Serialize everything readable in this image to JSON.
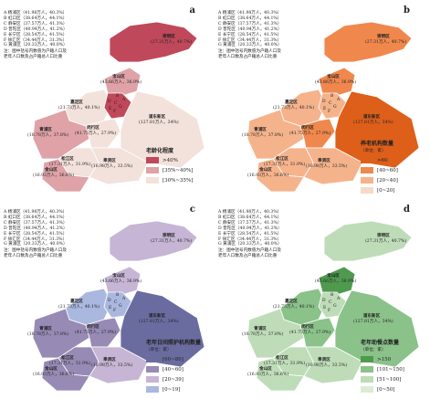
{
  "districts_list": [
    "A 杨浦区（41.98万人，40.3%）",
    "B 虹口区（38.64万人，44.1%）",
    "C 静安区（37.57万人，41.3%）",
    "D 普陀区（40.94万人，41.2%）",
    "E 长宁区（28.54万人，41.5%）",
    "F 徐汇区（34.44万人，31.3%）",
    "G 黄浦区（20.33万人，40.0%）"
  ],
  "note_lines": [
    "注：图中括号内数值为户籍人口及",
    "老年人口数及占户籍总人口比重"
  ],
  "map_labels": [
    {
      "name": "崇明区",
      "stats": "(27.31万人，40.7%)"
    },
    {
      "name": "嘉定区",
      "stats": "(21.73万人，40.1%)"
    },
    {
      "name": "宝山区",
      "stats": "(43.66万人，36.9%)"
    },
    {
      "name": "青浦区",
      "stats": "(18.78万人，37.8%)"
    },
    {
      "name": "闵行区",
      "stats": "(41.75万人，27.9%)"
    },
    {
      "name": "浦东新区",
      "stats": "(127.81万人，34%)"
    },
    {
      "name": "松江区",
      "stats": "(17.31万人，31.9%)"
    },
    {
      "name": "奉贤区",
      "stats": "(16.98万人，33.5%)"
    },
    {
      "name": "金山区",
      "stats": "(16.93万人，36.6%)"
    }
  ],
  "panels": [
    {
      "letter": "a",
      "legend_title": "老龄化程度",
      "legend_unit": "",
      "items": [
        ">40%",
        "[35%~40%]",
        "[30%~35%]"
      ],
      "colors": [
        "#c0485b",
        "#dea2a7",
        "#f3e1db"
      ]
    },
    {
      "letter": "b",
      "legend_title": "养老机构数量",
      "legend_unit": "（单位：家）",
      "items": [
        ">60",
        "[40~60]",
        "[20~40]",
        "[0~20]"
      ],
      "colors": [
        "#dd5f1a",
        "#f0884d",
        "#f5b38c",
        "#f6d9c9"
      ]
    },
    {
      "letter": "c",
      "legend_title": "老年日间照护机构数量",
      "legend_unit": "（单位：家）",
      "items": [
        "[60~80]",
        "[40~60]",
        "[20~39]",
        "[0~19]"
      ],
      "colors": [
        "#6a6c9f",
        "#978ab5",
        "#c6b5d4",
        "#aab8df"
      ]
    },
    {
      "letter": "d",
      "legend_title": "老年助餐点数量",
      "legend_unit": "（单位：家）",
      "items": [
        ">150",
        "[101~150]",
        "[51~100]",
        "[0~50]"
      ],
      "colors": [
        "#4f9a4f",
        "#8ac28a",
        "#bedcb8",
        "#dcebd4"
      ]
    }
  ]
}
